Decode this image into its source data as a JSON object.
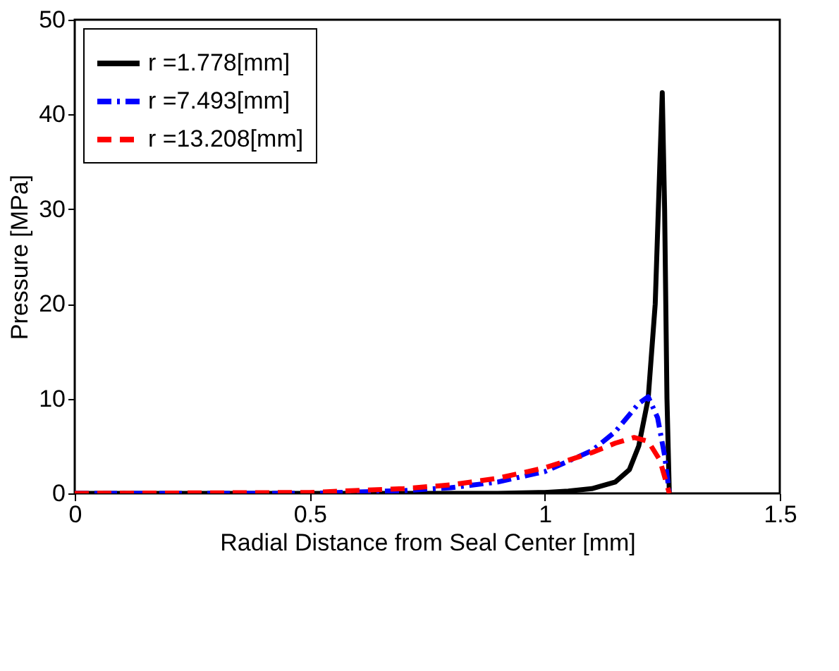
{
  "chart_data": {
    "type": "line",
    "xlabel": "Radial Distance from Seal Center [mm]",
    "ylabel": "Pressure [MPa]",
    "xlim": [
      0,
      1.5
    ],
    "ylim": [
      0,
      50
    ],
    "xticks": [
      0,
      0.5,
      1,
      1.5
    ],
    "yticks": [
      0,
      10,
      20,
      30,
      40,
      50
    ],
    "grid": false,
    "legend": "top left",
    "marker": "none",
    "series": [
      {
        "name": "r =1.778[mm]",
        "color": "#000000",
        "line_style": "solid",
        "x": [
          0,
          0.5,
          0.8,
          0.9,
          1.0,
          1.05,
          1.1,
          1.15,
          1.18,
          1.2,
          1.22,
          1.235,
          1.245,
          1.25,
          1.255,
          1.26,
          1.265
        ],
        "values": [
          0,
          0,
          0,
          0,
          0.1,
          0.25,
          0.5,
          1.2,
          2.5,
          5,
          10,
          20,
          35,
          42.3,
          30,
          10,
          0
        ]
      },
      {
        "name": "r =7.493[mm]",
        "color": "#0000ff",
        "line_style": "dashdot",
        "x": [
          0,
          0.5,
          0.7,
          0.8,
          0.9,
          1.0,
          1.1,
          1.15,
          1.2,
          1.22,
          1.24,
          1.255,
          1.265
        ],
        "values": [
          0,
          0,
          0.3,
          0.6,
          1.2,
          2.3,
          4.5,
          6.5,
          9.5,
          10.2,
          8,
          4,
          0
        ]
      },
      {
        "name": "r =13.208[mm]",
        "color": "#ff0000",
        "line_style": "dashed",
        "x": [
          0,
          0.5,
          0.7,
          0.8,
          0.9,
          1.0,
          1.1,
          1.15,
          1.19,
          1.22,
          1.245,
          1.265
        ],
        "values": [
          0,
          0.1,
          0.5,
          0.9,
          1.6,
          2.7,
          4.3,
          5.3,
          5.9,
          5.5,
          3.5,
          0
        ]
      }
    ]
  }
}
